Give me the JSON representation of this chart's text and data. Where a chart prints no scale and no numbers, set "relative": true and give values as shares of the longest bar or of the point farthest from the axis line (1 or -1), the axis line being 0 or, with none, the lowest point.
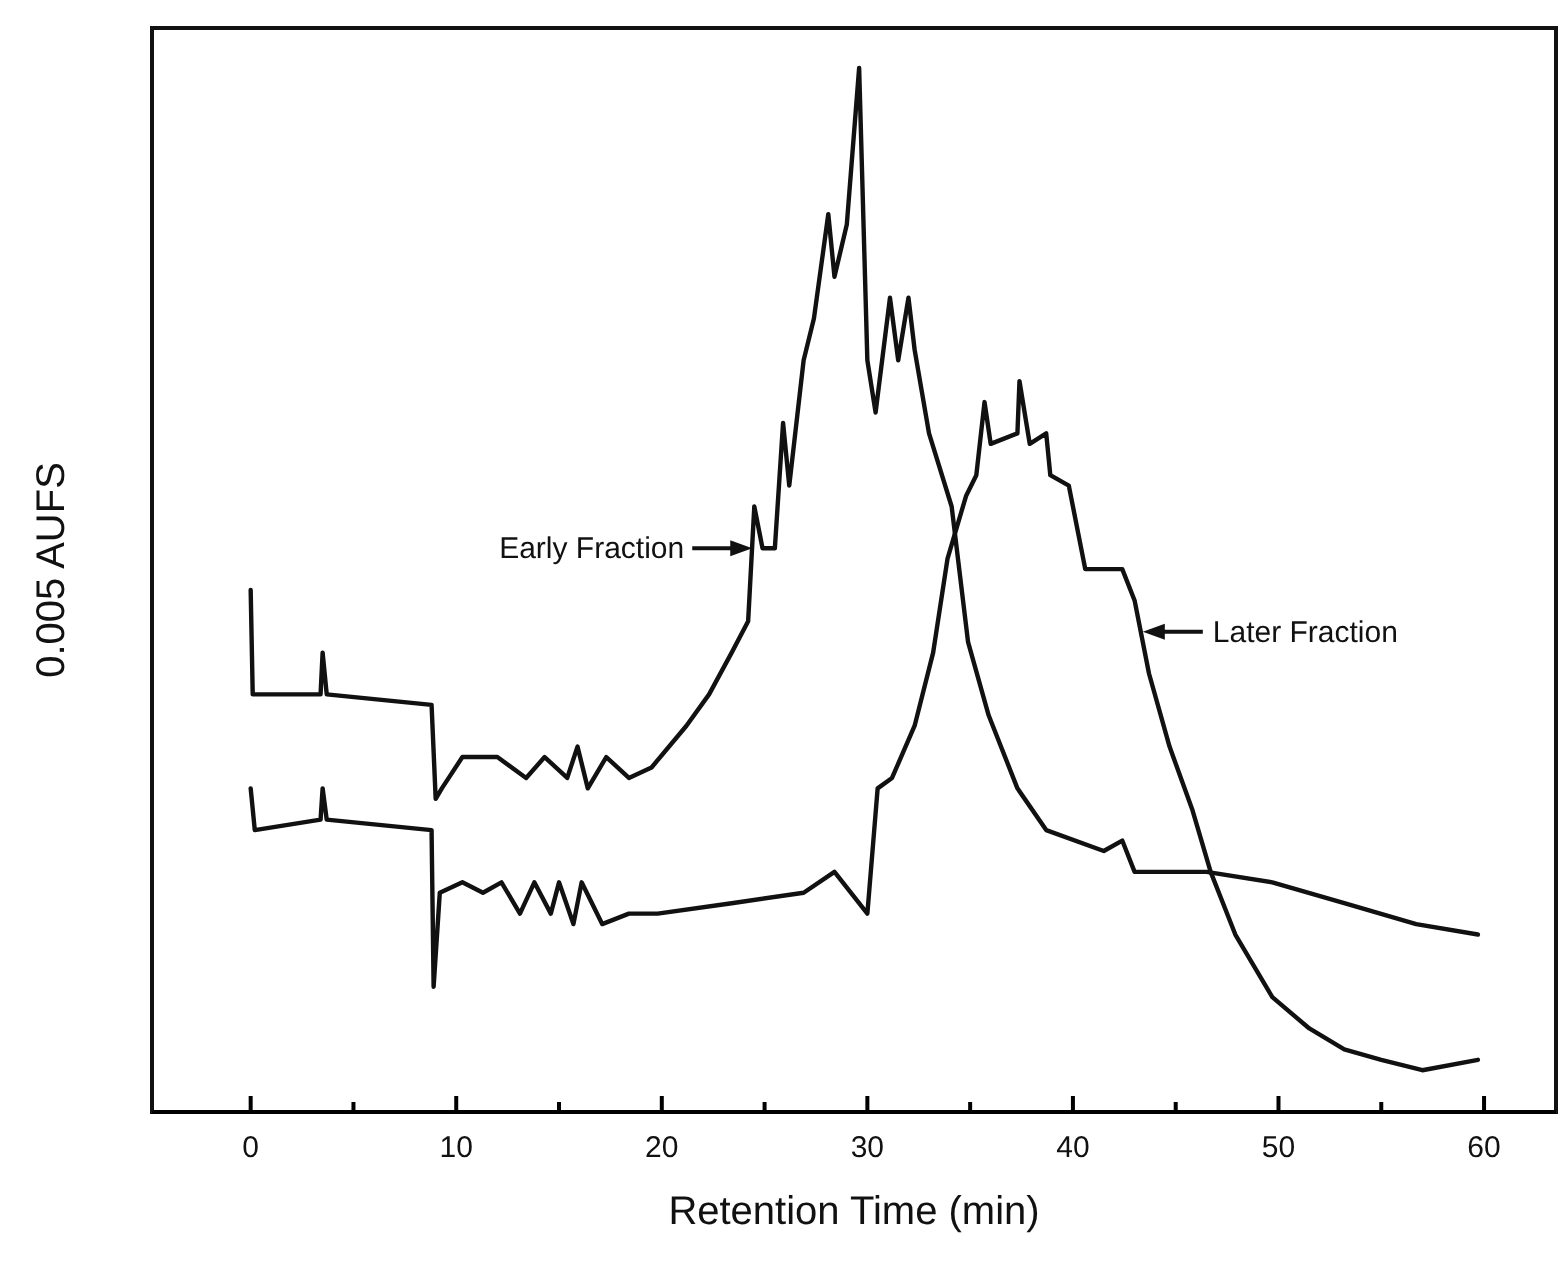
{
  "chart_data": {
    "type": "line",
    "relative": true,
    "xlabel": "Retention Time (min)",
    "ylabel": "0.005 AUFS",
    "xlim": [
      -4.8,
      63.5
    ],
    "xticks": [
      0,
      {
        "value": 5,
        "label": null
      },
      10,
      {
        "value": 15,
        "label": null
      },
      20,
      {
        "value": 25,
        "label": null
      },
      30,
      {
        "value": 35,
        "label": null
      },
      40,
      {
        "value": 45,
        "label": null
      },
      50,
      {
        "value": 55,
        "label": null
      },
      60
    ],
    "grid": false,
    "marker": "none",
    "line_style": "solid",
    "annotations": [
      {
        "text": "Early Fraction",
        "x": 24.4,
        "y": 0.54
      },
      {
        "text": "Later Fraction",
        "x": 43.4,
        "y": 0.46
      }
    ],
    "series": [
      {
        "color": "#111111",
        "x": [
          0,
          0.1,
          3.4,
          3.5,
          3.7,
          8.8,
          9.0,
          9.3,
          10.3,
          12.0,
          13.4,
          14.3,
          15.4,
          15.9,
          16.4,
          17.3,
          18.4,
          19.5,
          21.2,
          22.3,
          23.4,
          24.2,
          24.5,
          24.9,
          25.5,
          25.9,
          26.2,
          26.9,
          27.4,
          28.1,
          28.4,
          29.0,
          29.6,
          30.0,
          30.4,
          31.1,
          31.5,
          32.0,
          32.3,
          33.0,
          34.1,
          34.9,
          35.9,
          37.3,
          38.7,
          41.5,
          42.4,
          43.0,
          46.5,
          49.7,
          53.2,
          56.7,
          59.7
        ],
        "values": [
          0.5,
          0.4,
          0.4,
          0.44,
          0.4,
          0.39,
          0.3,
          0.31,
          0.34,
          0.34,
          0.32,
          0.34,
          0.32,
          0.35,
          0.31,
          0.34,
          0.32,
          0.33,
          0.37,
          0.4,
          0.44,
          0.47,
          0.58,
          0.54,
          0.54,
          0.66,
          0.6,
          0.72,
          0.76,
          0.86,
          0.8,
          0.85,
          1.0,
          0.72,
          0.67,
          0.78,
          0.72,
          0.78,
          0.73,
          0.65,
          0.58,
          0.45,
          0.38,
          0.31,
          0.27,
          0.25,
          0.26,
          0.23,
          0.23,
          0.22,
          0.2,
          0.18,
          0.17
        ]
      },
      {
        "color": "#111111",
        "x": [
          0,
          0.2,
          3.4,
          3.5,
          3.7,
          8.8,
          8.9,
          9.2,
          10.3,
          11.3,
          12.2,
          13.1,
          13.8,
          14.6,
          15.0,
          15.7,
          16.1,
          17.1,
          18.4,
          19.8,
          23.4,
          26.9,
          28.4,
          30.0,
          30.5,
          31.2,
          32.3,
          33.2,
          33.9,
          34.8,
          35.3,
          35.7,
          36.0,
          37.3,
          37.4,
          37.9,
          38.7,
          38.9,
          39.8,
          40.6,
          41.5,
          42.4,
          43.0,
          43.7,
          44.7,
          45.8,
          46.7,
          47.9,
          49.7,
          51.5,
          53.2,
          55.0,
          57.0,
          59.7
        ],
        "values": [
          0.31,
          0.27,
          0.28,
          0.31,
          0.28,
          0.27,
          0.12,
          0.21,
          0.22,
          0.21,
          0.22,
          0.19,
          0.22,
          0.19,
          0.22,
          0.18,
          0.22,
          0.18,
          0.19,
          0.19,
          0.2,
          0.21,
          0.23,
          0.19,
          0.31,
          0.32,
          0.37,
          0.44,
          0.53,
          0.59,
          0.61,
          0.68,
          0.64,
          0.65,
          0.7,
          0.64,
          0.65,
          0.61,
          0.6,
          0.52,
          0.52,
          0.52,
          0.49,
          0.42,
          0.35,
          0.29,
          0.23,
          0.17,
          0.11,
          0.08,
          0.06,
          0.05,
          0.04,
          0.05
        ]
      }
    ]
  }
}
